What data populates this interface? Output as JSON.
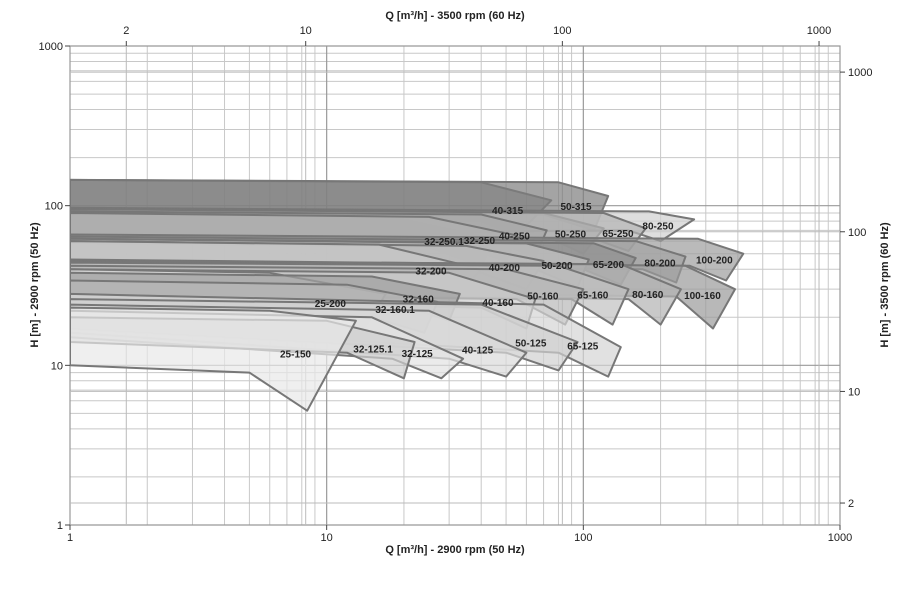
{
  "chart_data": {
    "type": "pump-envelope",
    "x_label": "Q [m³/h] - 2900 rpm (50 Hz)",
    "x2_label": "Q [m³/h] - 3500 rpm (60 Hz)",
    "y_label": "H [m] - 2900 rpm (50 Hz)",
    "y2_label": "H [m] - 3500 rpm (60 Hz)",
    "xscale": "log",
    "yscale": "log",
    "grid": true,
    "xlim": [
      1,
      1000
    ],
    "xticks": [
      1,
      10,
      100,
      1000
    ],
    "xminorticks": [
      2,
      3,
      4,
      5,
      6,
      7,
      8,
      9,
      20,
      30,
      40,
      50,
      60,
      70,
      80,
      90,
      200,
      300,
      400,
      500,
      600,
      700,
      800,
      900
    ],
    "ylim": [
      1,
      1000
    ],
    "yticks": [
      1,
      10,
      100,
      1000
    ],
    "yminorticks": [
      2,
      3,
      4,
      5,
      6,
      7,
      8,
      9,
      20,
      30,
      40,
      50,
      60,
      70,
      80,
      90,
      200,
      300,
      400,
      500,
      600,
      700,
      800,
      900
    ],
    "x2lim": [
      1.207,
      1207
    ],
    "x2ticks": [
      2,
      10,
      100,
      1000
    ],
    "y2lim": [
      1.457,
      1457
    ],
    "y2ticks": [
      2,
      10,
      100,
      1000
    ],
    "series": [
      {
        "name": "40-315",
        "color": "#8a8a8a",
        "points": [
          [
            1,
            145
          ],
          [
            40,
            140
          ],
          [
            75,
            108
          ],
          [
            55,
            65
          ],
          [
            40,
            80
          ],
          [
            1,
            90
          ]
        ]
      },
      {
        "name": "50-315",
        "color": "#7e7e7e",
        "points": [
          [
            1,
            145
          ],
          [
            80,
            140
          ],
          [
            125,
            115
          ],
          [
            110,
            70
          ],
          [
            70,
            88
          ],
          [
            1,
            95
          ]
        ]
      },
      {
        "name": "80-250",
        "color": "#d0d0d0",
        "points": [
          [
            1,
            97
          ],
          [
            180,
            92
          ],
          [
            270,
            82
          ],
          [
            200,
            60
          ],
          [
            150,
            70
          ],
          [
            1,
            66
          ]
        ]
      },
      {
        "name": "32-250.1",
        "color": "#6e6e6e",
        "points": [
          [
            1,
            95
          ],
          [
            15,
            90
          ],
          [
            45,
            62
          ],
          [
            40,
            42
          ],
          [
            25,
            55
          ],
          [
            1,
            60
          ]
        ]
      },
      {
        "name": "50-250",
        "color": "#9a9a9a",
        "points": [
          [
            1,
            95
          ],
          [
            70,
            90
          ],
          [
            120,
            72
          ],
          [
            100,
            50
          ],
          [
            75,
            62
          ],
          [
            1,
            64
          ]
        ]
      },
      {
        "name": "65-250",
        "color": "#b4b4b4",
        "points": [
          [
            1,
            95
          ],
          [
            120,
            90
          ],
          [
            175,
            72
          ],
          [
            150,
            52
          ],
          [
            110,
            62
          ],
          [
            1,
            64
          ]
        ]
      },
      {
        "name": "40-250",
        "color": "#a8a8a8",
        "points": [
          [
            1,
            92
          ],
          [
            40,
            88
          ],
          [
            72,
            70
          ],
          [
            65,
            48
          ],
          [
            45,
            60
          ],
          [
            1,
            62
          ]
        ]
      },
      {
        "name": "32-250",
        "color": "#b0b0b0",
        "points": [
          [
            1,
            90
          ],
          [
            25,
            85
          ],
          [
            55,
            65
          ],
          [
            50,
            45
          ],
          [
            35,
            55
          ],
          [
            1,
            58
          ]
        ]
      },
      {
        "name": "100-200",
        "color": "#9c9c9c",
        "points": [
          [
            1,
            66
          ],
          [
            280,
            62
          ],
          [
            420,
            50
          ],
          [
            360,
            34
          ],
          [
            260,
            42
          ],
          [
            1,
            44
          ]
        ]
      },
      {
        "name": "80-200",
        "color": "#a4a4a4",
        "points": [
          [
            1,
            64
          ],
          [
            160,
            60
          ],
          [
            250,
            48
          ],
          [
            230,
            33
          ],
          [
            170,
            40
          ],
          [
            1,
            44
          ]
        ]
      },
      {
        "name": "65-200",
        "color": "#8e8e8e",
        "points": [
          [
            1,
            62
          ],
          [
            110,
            58
          ],
          [
            160,
            47
          ],
          [
            140,
            32
          ],
          [
            100,
            40
          ],
          [
            1,
            42
          ]
        ]
      },
      {
        "name": "50-200",
        "color": "#c4c4c4",
        "points": [
          [
            1,
            62
          ],
          [
            60,
            58
          ],
          [
            105,
            46
          ],
          [
            95,
            31
          ],
          [
            65,
            40
          ],
          [
            1,
            42
          ]
        ]
      },
      {
        "name": "40-200",
        "color": "#bcbcbc",
        "points": [
          [
            1,
            60
          ],
          [
            35,
            56
          ],
          [
            70,
            45
          ],
          [
            60,
            30
          ],
          [
            40,
            38
          ],
          [
            1,
            42
          ]
        ]
      },
      {
        "name": "32-200",
        "color": "#c8c8c8",
        "points": [
          [
            1,
            60
          ],
          [
            16,
            57
          ],
          [
            40,
            40
          ],
          [
            33,
            28
          ],
          [
            20,
            37
          ],
          [
            1,
            40
          ]
        ]
      },
      {
        "name": "100-160",
        "color": "#9a9a9a",
        "points": [
          [
            1,
            46
          ],
          [
            250,
            42
          ],
          [
            390,
            30
          ],
          [
            320,
            17
          ],
          [
            230,
            27
          ],
          [
            1,
            30
          ]
        ]
      },
      {
        "name": "80-160",
        "color": "#b2b2b2",
        "points": [
          [
            1,
            45
          ],
          [
            140,
            43
          ],
          [
            240,
            30
          ],
          [
            200,
            18
          ],
          [
            150,
            26
          ],
          [
            1,
            30
          ]
        ]
      },
      {
        "name": "65-160",
        "color": "#c0c0c0",
        "points": [
          [
            1,
            44
          ],
          [
            80,
            42
          ],
          [
            150,
            30
          ],
          [
            130,
            18
          ],
          [
            90,
            26
          ],
          [
            1,
            28
          ]
        ]
      },
      {
        "name": "50-160",
        "color": "#b8b8b8",
        "points": [
          [
            1,
            42
          ],
          [
            50,
            40
          ],
          [
            100,
            30
          ],
          [
            85,
            18
          ],
          [
            55,
            26
          ],
          [
            1,
            28
          ]
        ]
      },
      {
        "name": "40-160",
        "color": "#cccccc",
        "points": [
          [
            1,
            40
          ],
          [
            30,
            38
          ],
          [
            65,
            26
          ],
          [
            60,
            17
          ],
          [
            40,
            23
          ],
          [
            1,
            26
          ]
        ]
      },
      {
        "name": "25-200",
        "color": "#d6d6d6",
        "points": [
          [
            1,
            40
          ],
          [
            6,
            38
          ],
          [
            17,
            28
          ],
          [
            14,
            17
          ],
          [
            8,
            20
          ],
          [
            1,
            22
          ]
        ]
      },
      {
        "name": "32-160",
        "color": "#a0a0a0",
        "points": [
          [
            1,
            38
          ],
          [
            15,
            36
          ],
          [
            33,
            28
          ],
          [
            30,
            19
          ],
          [
            18,
            25
          ],
          [
            1,
            28
          ]
        ]
      },
      {
        "name": "32-160.1",
        "color": "#b6b6b6",
        "points": [
          [
            1,
            34
          ],
          [
            12,
            32
          ],
          [
            27,
            25
          ],
          [
            24,
            16
          ],
          [
            15,
            20
          ],
          [
            1,
            24
          ]
        ]
      },
      {
        "name": "65-125",
        "color": "#d4d4d4",
        "points": [
          [
            1,
            28
          ],
          [
            70,
            24
          ],
          [
            140,
            13
          ],
          [
            125,
            8.5
          ],
          [
            80,
            12
          ],
          [
            1,
            18
          ]
        ]
      },
      {
        "name": "50-125",
        "color": "#d0d0d0",
        "points": [
          [
            1,
            26
          ],
          [
            40,
            24
          ],
          [
            95,
            14
          ],
          [
            80,
            9.3
          ],
          [
            50,
            12
          ],
          [
            1,
            17
          ]
        ]
      },
      {
        "name": "40-125",
        "color": "#dadada",
        "points": [
          [
            1,
            24
          ],
          [
            25,
            22
          ],
          [
            60,
            12
          ],
          [
            50,
            8.5
          ],
          [
            30,
            11
          ],
          [
            1,
            16
          ]
        ]
      },
      {
        "name": "32-125",
        "color": "#e2e2e2",
        "points": [
          [
            1,
            22
          ],
          [
            15,
            20
          ],
          [
            34,
            11
          ],
          [
            28,
            8.3
          ],
          [
            18,
            11
          ],
          [
            1,
            15
          ]
        ]
      },
      {
        "name": "32-125.1",
        "color": "#cfcfcf",
        "points": [
          [
            1,
            20
          ],
          [
            10,
            19
          ],
          [
            22,
            14
          ],
          [
            20,
            8.3
          ],
          [
            12,
            12
          ],
          [
            1,
            14
          ]
        ]
      },
      {
        "name": "25-150",
        "color": "#e8e8e8",
        "points": [
          [
            1,
            23
          ],
          [
            6,
            22
          ],
          [
            13,
            19
          ],
          [
            8.4,
            5.2
          ],
          [
            5,
            9
          ],
          [
            1,
            10
          ]
        ]
      }
    ]
  }
}
